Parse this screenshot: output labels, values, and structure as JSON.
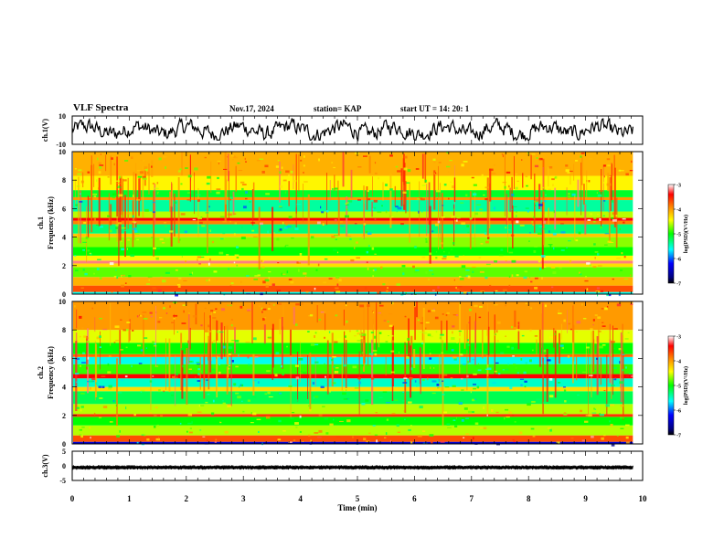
{
  "header": {
    "title": "VLF Spectra",
    "date": "Nov.17, 2024",
    "station": "station= KAP",
    "start": "start UT =  14: 20: 1"
  },
  "chart_data": [
    {
      "type": "line",
      "name": "waveform-ch1",
      "ylabel": "ch.1(V)",
      "ylim": [
        -10,
        10
      ],
      "y_ticks": [
        "10",
        "-10"
      ],
      "xlim": [
        0,
        10
      ],
      "series": [
        {
          "name": "ch.1 signal",
          "approx_range": [
            -7,
            9
          ]
        }
      ]
    },
    {
      "type": "heatmap",
      "name": "spectrogram-ch1",
      "xlabel": "",
      "ylabel": "ch.1 Frequency (kHz)",
      "ylabel_top": "ch.1",
      "ylabel_main": "Frequency  (kHz)",
      "xlim": [
        0,
        10
      ],
      "ylim": [
        0,
        10
      ],
      "y_ticks": [
        "0",
        "2",
        "4",
        "6",
        "8",
        "10"
      ],
      "data_end_min": 9.83,
      "bands_khz": [
        {
          "from": 0.0,
          "to": 0.15,
          "level": -5.6
        },
        {
          "from": 0.15,
          "to": 0.6,
          "level": -3.7
        },
        {
          "from": 0.6,
          "to": 1.2,
          "level": -4.1
        },
        {
          "from": 1.2,
          "to": 1.9,
          "level": -4.8
        },
        {
          "from": 1.9,
          "to": 2.15,
          "level": -4.3
        },
        {
          "from": 2.15,
          "to": 2.35,
          "level": -3.2
        },
        {
          "from": 2.35,
          "to": 2.7,
          "level": -4.4
        },
        {
          "from": 2.7,
          "to": 3.3,
          "level": -5.0
        },
        {
          "from": 3.3,
          "to": 4.0,
          "level": -4.7
        },
        {
          "from": 4.0,
          "to": 4.25,
          "level": -4.2
        },
        {
          "from": 4.25,
          "to": 4.9,
          "level": -5.3
        },
        {
          "from": 4.9,
          "to": 5.15,
          "level": -3.9
        },
        {
          "from": 5.15,
          "to": 5.35,
          "level": -3.4
        },
        {
          "from": 5.35,
          "to": 5.8,
          "level": -4.6
        },
        {
          "from": 5.8,
          "to": 6.6,
          "level": -5.4
        },
        {
          "from": 6.6,
          "to": 6.8,
          "level": -4.0
        },
        {
          "from": 6.8,
          "to": 7.3,
          "level": -5.1
        },
        {
          "from": 7.3,
          "to": 8.3,
          "level": -4.4
        },
        {
          "from": 8.3,
          "to": 10.0,
          "level": -4.1
        }
      ],
      "colorbar": {
        "label": "log(PSD)(V²/Hz)",
        "range": [
          -7,
          -3
        ],
        "ticks": [
          "-3",
          "-4",
          "-5",
          "-6",
          "-7"
        ]
      }
    },
    {
      "type": "heatmap",
      "name": "spectrogram-ch2",
      "xlabel": "",
      "ylabel": "ch.2 Frequency (kHz)",
      "ylabel_top": "ch.2",
      "ylabel_main": "Frequency  (kHz)",
      "xlim": [
        0,
        10
      ],
      "ylim": [
        0,
        10
      ],
      "y_ticks": [
        "0",
        "2",
        "4",
        "6",
        "8",
        "10"
      ],
      "data_end_min": 9.83,
      "bands_khz": [
        {
          "from": 0.0,
          "to": 0.15,
          "level": -6.4
        },
        {
          "from": 0.15,
          "to": 0.6,
          "level": -3.7
        },
        {
          "from": 0.6,
          "to": 1.3,
          "level": -4.6
        },
        {
          "from": 1.3,
          "to": 1.9,
          "level": -5.0
        },
        {
          "from": 1.9,
          "to": 2.1,
          "level": -3.6
        },
        {
          "from": 2.1,
          "to": 2.8,
          "level": -4.6
        },
        {
          "from": 2.8,
          "to": 3.7,
          "level": -5.2
        },
        {
          "from": 3.7,
          "to": 4.0,
          "level": -4.3
        },
        {
          "from": 4.0,
          "to": 4.6,
          "level": -5.5
        },
        {
          "from": 4.6,
          "to": 4.9,
          "level": -3.4
        },
        {
          "from": 4.9,
          "to": 5.6,
          "level": -4.9
        },
        {
          "from": 5.6,
          "to": 6.1,
          "level": -5.6
        },
        {
          "from": 6.1,
          "to": 6.3,
          "level": -3.8
        },
        {
          "from": 6.3,
          "to": 7.1,
          "level": -5.0
        },
        {
          "from": 7.1,
          "to": 8.0,
          "level": -4.5
        },
        {
          "from": 8.0,
          "to": 10.0,
          "level": -4.0
        }
      ],
      "colorbar": {
        "label": "log(PSD)(V²/Hz)",
        "range": [
          -7,
          -3
        ],
        "ticks": [
          "-3",
          "-4",
          "-5",
          "-6",
          "-7"
        ]
      }
    },
    {
      "type": "line",
      "name": "waveform-ch3",
      "xlabel": "Time  (min)",
      "ylabel": "ch.3(V)",
      "ylim": [
        -5,
        5
      ],
      "y_ticks": [
        "5",
        "0",
        "-5"
      ],
      "xlim": [
        0,
        10
      ],
      "x_ticks": [
        "0",
        "1",
        "2",
        "3",
        "4",
        "5",
        "6",
        "7",
        "8",
        "9",
        "10"
      ],
      "series": [
        {
          "name": "ch.3 signal",
          "approx_range": [
            -1.3,
            0.2
          ]
        }
      ]
    }
  ]
}
